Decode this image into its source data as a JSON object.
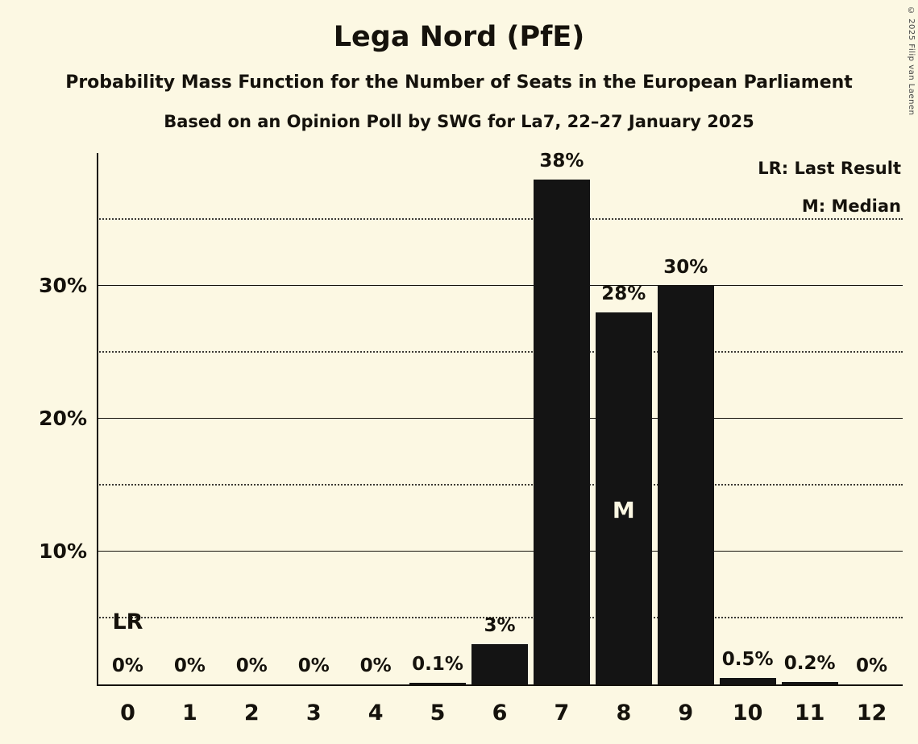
{
  "header": {
    "title": "Lega Nord (PfE)",
    "subtitle1": "Probability Mass Function for the Number of Seats in the European Parliament",
    "subtitle2": "Based on an Opinion Poll by SWG for La7, 22–27 January 2025"
  },
  "legend": {
    "last_result": "LR: Last Result",
    "median": "M: Median"
  },
  "copyright": "© 2025 Filip van Laenen",
  "chart_data": {
    "type": "bar",
    "title": "Lega Nord (PfE)",
    "categories": [
      "0",
      "1",
      "2",
      "3",
      "4",
      "5",
      "6",
      "7",
      "8",
      "9",
      "10",
      "11",
      "12"
    ],
    "values": [
      0,
      0,
      0,
      0,
      0,
      0.1,
      3,
      38,
      28,
      30,
      0.5,
      0.2,
      0
    ],
    "bar_labels": [
      "0%",
      "0%",
      "0%",
      "0%",
      "0%",
      "0.1%",
      "3%",
      "38%",
      "28%",
      "30%",
      "0.5%",
      "0.2%",
      "0%"
    ],
    "ylim": [
      0,
      40
    ],
    "yticks": [
      {
        "value": 10,
        "label": "10%"
      },
      {
        "value": 20,
        "label": "20%"
      },
      {
        "value": 30,
        "label": "30%"
      }
    ],
    "solid_gridlines": [
      10,
      20,
      30
    ],
    "dotted_gridlines": [
      5,
      15,
      25,
      35
    ],
    "annotations": [
      {
        "text": "LR",
        "category": "0",
        "type": "last-result",
        "meaning": "Last Result"
      },
      {
        "text": "M",
        "category": "8",
        "type": "median",
        "meaning": "Median"
      }
    ],
    "grid": true,
    "legend_position": "top-right",
    "bar_color": "#141414",
    "background_color": "#fcf8e3"
  }
}
